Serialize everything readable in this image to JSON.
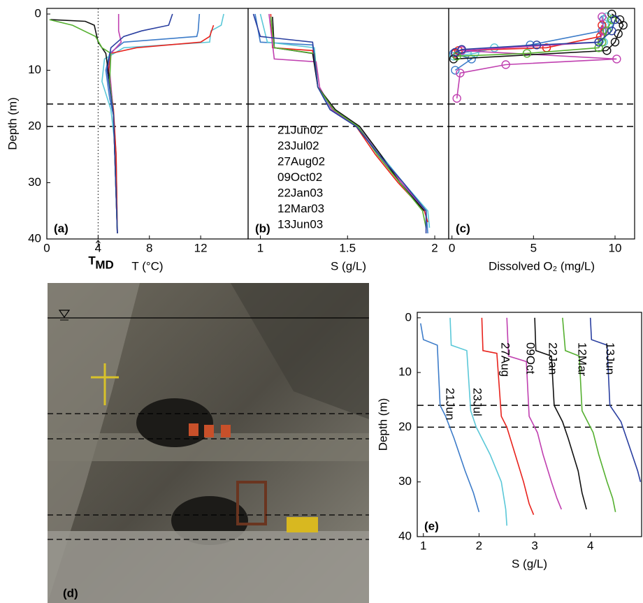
{
  "chart_data": [
    {
      "type": "profile",
      "panel_label": "(a)",
      "x_label": "T (°C)",
      "y_label": "Depth (m)",
      "xlim": [
        0,
        15.7
      ],
      "xticks": [
        0,
        4,
        8,
        12
      ],
      "ylim": [
        -1,
        40
      ],
      "yticks": [
        0,
        10,
        20,
        30,
        40
      ],
      "hlines": [
        16,
        20
      ],
      "vline": 4,
      "vline_label": "T",
      "vline_label_sub": "MD",
      "series": [
        {
          "name": "21Jun02",
          "color": "#3d7cc9",
          "x": [
            11.9,
            11.8,
            11.7,
            6,
            4.9,
            4.6,
            4.9,
            5.2,
            5.4,
            5.5
          ],
          "values": [
            0,
            3,
            4,
            5,
            7,
            10,
            15,
            18,
            25,
            39
          ]
        },
        {
          "name": "23Jul02",
          "color": "#5bc8d8",
          "x": [
            13.8,
            13.6,
            12.8,
            12.7,
            6,
            4.5,
            4.3,
            5.0,
            5.4,
            5.5
          ],
          "values": [
            0,
            2,
            3,
            5,
            6,
            8,
            12,
            17,
            25,
            39
          ]
        },
        {
          "name": "27Aug02",
          "color": "#e8221c",
          "x": [
            13.0,
            12.7,
            12,
            7,
            5,
            4.8,
            5.2,
            5.4,
            5.5
          ],
          "values": [
            2,
            4,
            5,
            6,
            7,
            10,
            17,
            25,
            39
          ]
        },
        {
          "name": "09Oct02",
          "color": "#c040b0",
          "x": [
            5.6,
            5.6,
            5.8,
            5,
            4.9,
            5.2,
            5.5
          ],
          "values": [
            0,
            3,
            5,
            7,
            10,
            18,
            39
          ]
        },
        {
          "name": "22Jan03",
          "color": "#111111",
          "x": [
            0.3,
            3,
            3.7,
            4.0,
            4.6,
            4.9,
            5.2,
            5.5
          ],
          "values": [
            1,
            1.3,
            2,
            5,
            7,
            12,
            18,
            39
          ]
        },
        {
          "name": "12Mar03",
          "color": "#55b030",
          "x": [
            0.2,
            2,
            3.8,
            4.3,
            5,
            4.9,
            5.2,
            5.5
          ],
          "values": [
            1,
            2,
            4,
            6,
            7,
            12,
            18,
            39
          ]
        },
        {
          "name": "13Jun03",
          "color": "#2a3fa0",
          "x": [
            9.8,
            9.5,
            7.4,
            6,
            5,
            4.7,
            5.2,
            5.5
          ],
          "values": [
            0,
            2,
            3,
            4,
            6,
            10,
            18,
            39
          ]
        }
      ]
    },
    {
      "type": "profile",
      "panel_label": "(b)",
      "x_label": "S (g/L)",
      "legend": "lower-left",
      "xlim": [
        0.93,
        2.08
      ],
      "xticks": [
        1,
        1.5,
        2
      ],
      "ylim": [
        -1,
        40
      ],
      "hlines": [
        16,
        20
      ],
      "series": [
        {
          "name": "21Jun02",
          "color": "#3d7cc9",
          "x": [
            0.97,
            1.0,
            1.3,
            1.33,
            1.4,
            1.55,
            1.68,
            1.8,
            1.95,
            1.96
          ],
          "values": [
            0,
            5,
            5.5,
            13,
            17,
            20,
            25,
            30,
            35,
            39
          ]
        },
        {
          "name": "23Jul02",
          "color": "#5bc8d8",
          "x": [
            1.0,
            1.04,
            1.31,
            1.33,
            1.41,
            1.56,
            1.69,
            1.82,
            1.96,
            1.97
          ],
          "values": [
            0,
            5,
            6,
            13,
            17,
            20,
            25,
            30,
            35,
            38
          ]
        },
        {
          "name": "27Aug02",
          "color": "#e8221c",
          "x": [
            1.06,
            1.07,
            1.3,
            1.33,
            1.42,
            1.55,
            1.66,
            1.79,
            1.94,
            1.96
          ],
          "values": [
            0,
            6,
            6.5,
            13,
            17,
            20,
            25,
            30,
            35,
            37
          ]
        },
        {
          "name": "09Oct02",
          "color": "#c040b0",
          "x": [
            1.05,
            1.08,
            1.32,
            1.34,
            1.41,
            1.56,
            1.68,
            1.81,
            1.95
          ],
          "values": [
            0,
            8,
            8.5,
            13,
            17,
            20,
            25,
            30,
            35
          ]
        },
        {
          "name": "22Jan03",
          "color": "#111111",
          "x": [
            1.07,
            1.08,
            1.3,
            1.33,
            1.43,
            1.57,
            1.69,
            1.8,
            1.94
          ],
          "values": [
            0.5,
            6,
            7,
            13,
            17,
            20,
            25,
            30,
            35
          ]
        },
        {
          "name": "12Mar03",
          "color": "#55b030",
          "x": [
            1.06,
            1.08,
            1.31,
            1.33,
            1.42,
            1.56,
            1.67,
            1.8,
            1.93,
            1.95
          ],
          "values": [
            0.5,
            6,
            7,
            13,
            17,
            20,
            25,
            30,
            35,
            38
          ]
        },
        {
          "name": "13Jun03",
          "color": "#2a3fa0",
          "x": [
            0.96,
            1.0,
            1.3,
            1.33,
            1.4,
            1.55,
            1.68,
            1.82,
            1.95,
            1.95
          ],
          "values": [
            0,
            4,
            5,
            13,
            17,
            20,
            25,
            30,
            35,
            39
          ]
        }
      ]
    },
    {
      "type": "profile",
      "panel_label": "(c)",
      "x_label": "Dissolved O₂ (mg/L)",
      "markers": true,
      "xlim": [
        -0.2,
        11.2
      ],
      "xticks": [
        0,
        5,
        10
      ],
      "ylim": [
        -1,
        40
      ],
      "hlines": [
        16,
        20
      ],
      "series": [
        {
          "name": "21Jun02",
          "color": "#3d7cc9",
          "x": [
            9.3,
            9.2,
            4.8,
            0.1,
            1.2,
            0.2
          ],
          "values": [
            1,
            3,
            5.5,
            7,
            8,
            10
          ]
        },
        {
          "name": "23Jul02",
          "color": "#5bc8d8",
          "x": [
            9.5,
            9.6,
            9.3,
            2.6,
            1.4,
            0.1
          ],
          "values": [
            0.5,
            2,
            5,
            6,
            7,
            7.5
          ]
        },
        {
          "name": "27Aug02",
          "color": "#e8221c",
          "x": [
            9.2,
            9.1,
            5.8,
            0.4,
            0.2
          ],
          "values": [
            2,
            4,
            6,
            6.5,
            7
          ]
        },
        {
          "name": "09Oct02",
          "color": "#c040b0",
          "x": [
            9.2,
            9.3,
            9.0,
            0.6,
            10.1,
            3.3,
            0.5,
            0.3
          ],
          "values": [
            0.5,
            3,
            5,
            6.5,
            8,
            9,
            10.5,
            15
          ]
        },
        {
          "name": "22Jan03",
          "color": "#111111",
          "x": [
            9.8,
            10.3,
            10.5,
            10.2,
            10,
            9.5,
            0.1
          ],
          "values": [
            0,
            1,
            2,
            3.5,
            5,
            6.5,
            8
          ]
        },
        {
          "name": "12Mar03",
          "color": "#55b030",
          "x": [
            9.8,
            9.5,
            9.2,
            9.0,
            4.6,
            0.3
          ],
          "values": [
            1,
            3,
            5,
            6,
            7,
            7.5
          ]
        },
        {
          "name": "13Jun03",
          "color": "#2a3fa0",
          "x": [
            10.0,
            9.8,
            9.0,
            5.2,
            0.6,
            0.2
          ],
          "values": [
            1,
            3,
            5,
            5.5,
            6.3,
            6.8
          ]
        }
      ]
    },
    {
      "type": "profile",
      "panel_label": "(e)",
      "x_label": "S (g/L)",
      "y_label": "Depth (m)",
      "curve_labels": true,
      "xlim": [
        0.89,
        4.92
      ],
      "xticks": [
        1,
        2,
        3,
        4
      ],
      "ylim": [
        -1,
        40
      ],
      "yticks": [
        0,
        10,
        20,
        30,
        40
      ],
      "hlines": [
        16,
        20
      ],
      "series": [
        {
          "name": "21Jun",
          "color": "#3d7cc9",
          "x": [
            0.95,
            1.0,
            1.25,
            1.3,
            1.4,
            1.55,
            1.75,
            1.9,
            2.0
          ],
          "values": [
            1,
            4,
            5,
            16,
            18,
            22,
            28,
            32,
            35.5
          ]
        },
        {
          "name": "23Jul",
          "color": "#5bc8d8",
          "x": [
            1.48,
            1.5,
            1.78,
            1.85,
            1.95,
            2.2,
            2.4,
            2.48,
            2.5
          ],
          "values": [
            0,
            5,
            6,
            17,
            20,
            25,
            30,
            35,
            38
          ]
        },
        {
          "name": "27Aug",
          "color": "#e8221c",
          "x": [
            2.05,
            2.07,
            2.32,
            2.4,
            2.5,
            2.65,
            2.8,
            2.9,
            2.98
          ],
          "values": [
            0,
            6,
            6.5,
            18,
            20,
            25,
            30,
            34,
            36
          ]
        },
        {
          "name": "09Oct",
          "color": "#c040b0",
          "x": [
            2.5,
            2.53,
            2.85,
            2.9,
            3.05,
            3.15,
            3.3,
            3.4,
            3.48
          ],
          "values": [
            0,
            7,
            8,
            18,
            21,
            25,
            30,
            33,
            35
          ]
        },
        {
          "name": "22Jan",
          "color": "#111111",
          "x": [
            3.0,
            3.02,
            3.3,
            3.35,
            3.5,
            3.6,
            3.78,
            3.85,
            3.93
          ],
          "values": [
            0,
            6,
            7,
            16,
            19,
            22,
            28,
            32,
            35
          ]
        },
        {
          "name": "12Mar",
          "color": "#55b030",
          "x": [
            3.5,
            3.55,
            3.8,
            3.85,
            4.05,
            4.15,
            4.3,
            4.4,
            4.45
          ],
          "values": [
            0,
            6,
            7,
            17,
            21,
            25,
            30,
            33,
            35.5
          ]
        },
        {
          "name": "13Jun",
          "color": "#2a3fa0",
          "x": [
            4.0,
            4.02,
            4.3,
            4.35,
            4.55,
            4.65,
            4.85,
            4.9
          ],
          "values": [
            0,
            4,
            5,
            16,
            19,
            22,
            28,
            30
          ]
        }
      ]
    }
  ],
  "photo": {
    "label": "(d)"
  }
}
